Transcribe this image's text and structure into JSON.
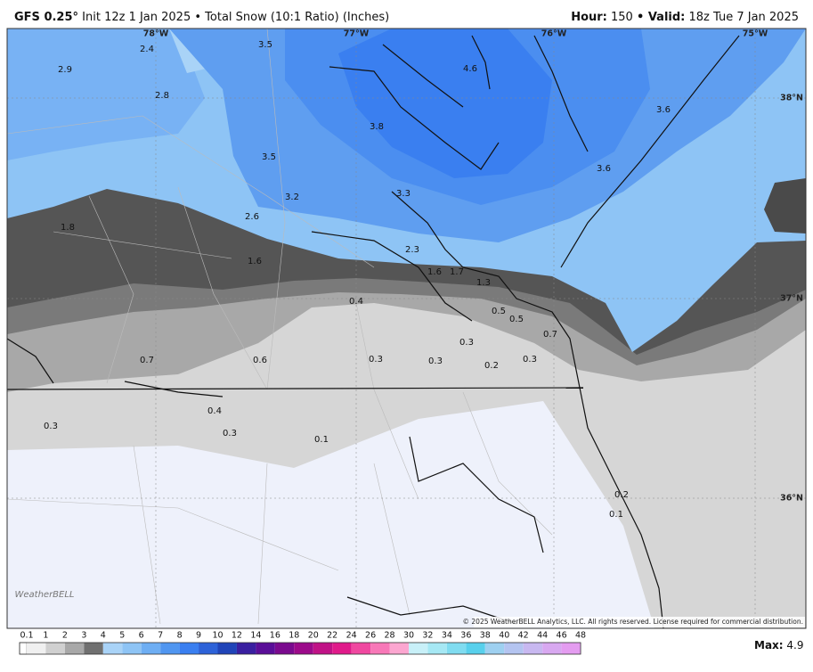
{
  "header": {
    "model": "GFS 0.25°",
    "title": "Init 12z 1 Jan 2025 • Total Snow (10:1 Ratio) (Inches)",
    "hour_label": "Hour:",
    "hour": "150",
    "valid_label": "• Valid:",
    "valid": "18z Tue 7 Jan 2025"
  },
  "map": {
    "lon_labels": [
      "78°W",
      "77°W",
      "76°W",
      "75°W"
    ],
    "lat_labels": [
      "38°N",
      "37°N",
      "36°N"
    ],
    "values": [
      2.4,
      3.5,
      4.6,
      2.9,
      2.8,
      3.6,
      3.8,
      3.5,
      3.6,
      3.2,
      3.3,
      2.6,
      1.8,
      2.3,
      1.6,
      1.6,
      1.7,
      1.3,
      0.4,
      0.5,
      0.5,
      0.7,
      0.3,
      0.7,
      0.6,
      0.3,
      0.3,
      0.2,
      0.3,
      0.4,
      0.3,
      0.3,
      0.1,
      0.2,
      0.1
    ],
    "logo": "WeatherBELL",
    "copyright": "© 2025 WeatherBELL Analytics, LLC. All rights reserved. License required for commercial distribution."
  },
  "colorbar": {
    "labels": [
      0.1,
      1,
      2,
      3,
      4,
      5,
      6,
      7,
      8,
      9,
      10,
      12,
      14,
      16,
      18,
      20,
      22,
      24,
      26,
      28,
      30,
      32,
      34,
      36,
      38,
      40,
      42,
      44,
      46,
      48
    ]
  },
  "max": {
    "label": "Max:",
    "value": 4.9
  }
}
